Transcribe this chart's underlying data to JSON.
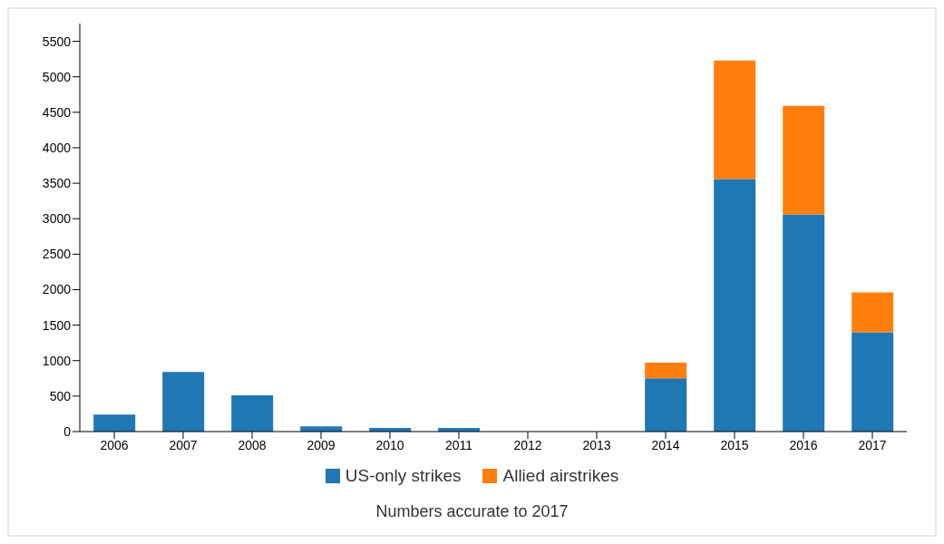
{
  "chart_data": {
    "type": "bar",
    "stacked": true,
    "categories": [
      "2006",
      "2007",
      "2008",
      "2009",
      "2010",
      "2011",
      "2012",
      "2013",
      "2014",
      "2015",
      "2016",
      "2017"
    ],
    "series": [
      {
        "name": "US-only strikes",
        "color": "#1f77b4",
        "values": [
          240,
          840,
          510,
          75,
          50,
          50,
          0,
          0,
          750,
          3560,
          3060,
          1400
        ]
      },
      {
        "name": "Allied airstrikes",
        "color": "#ff7f0e",
        "values": [
          0,
          0,
          0,
          0,
          0,
          0,
          0,
          0,
          220,
          1670,
          1530,
          560
        ]
      }
    ],
    "ylim": [
      0,
      5750
    ],
    "yticks": [
      0,
      500,
      1000,
      1500,
      2000,
      2500,
      3000,
      3500,
      4000,
      4500,
      5000,
      5500
    ],
    "grid": false,
    "legend": "bottom",
    "annotations": [
      "Numbers accurate to 2017"
    ]
  }
}
